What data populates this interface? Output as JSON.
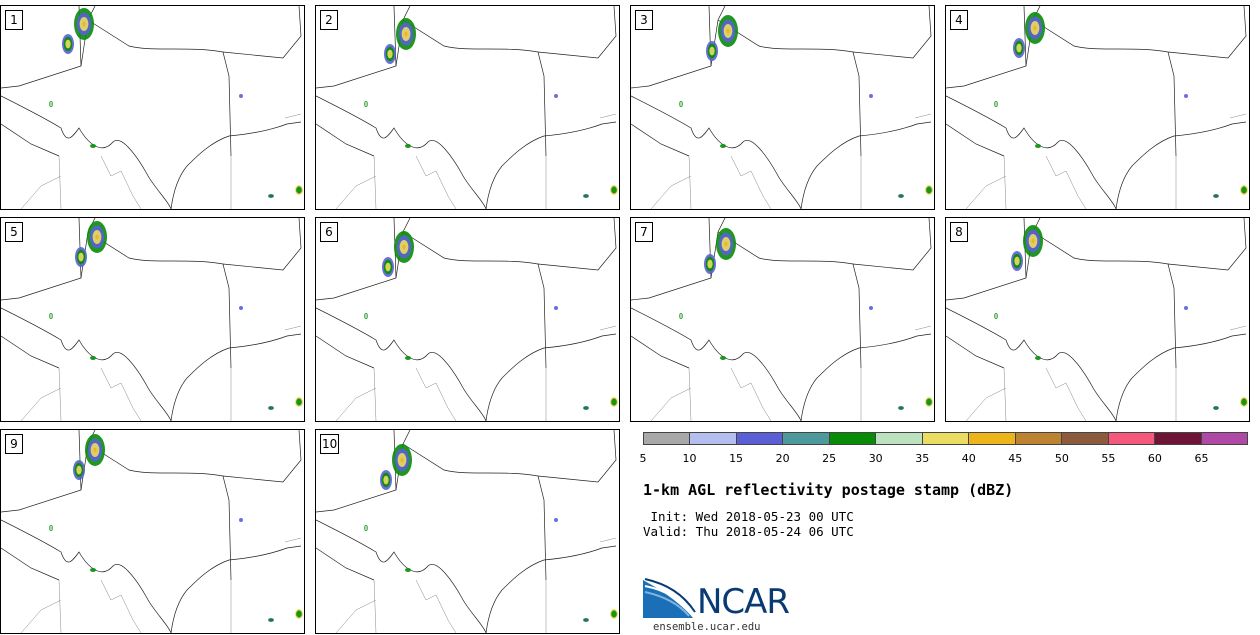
{
  "members": [
    {
      "label": "1"
    },
    {
      "label": "2"
    },
    {
      "label": "3"
    },
    {
      "label": "4"
    },
    {
      "label": "5"
    },
    {
      "label": "6"
    },
    {
      "label": "7"
    },
    {
      "label": "8"
    },
    {
      "label": "9"
    },
    {
      "label": "10"
    }
  ],
  "colorbar": {
    "colors": [
      "#a8a8a8",
      "#b4bff0",
      "#5a5fd6",
      "#4e999c",
      "#088c08",
      "#bce2be",
      "#ebdc64",
      "#eeb41c",
      "#be8233",
      "#8c5a3c",
      "#f4587a",
      "#6e1537",
      "#ae4aa6"
    ],
    "ticks": [
      "5",
      "10",
      "15",
      "20",
      "25",
      "30",
      "35",
      "40",
      "45",
      "50",
      "55",
      "60",
      "65"
    ]
  },
  "title": "1-km AGL reflectivity postage stamp (dBZ)",
  "init": " Init: Wed 2018-05-23 00 UTC",
  "valid": "Valid: Thu 2018-05-24 06 UTC",
  "logo": {
    "text": "NCAR",
    "site": "ensemble.ucar.edu"
  }
}
